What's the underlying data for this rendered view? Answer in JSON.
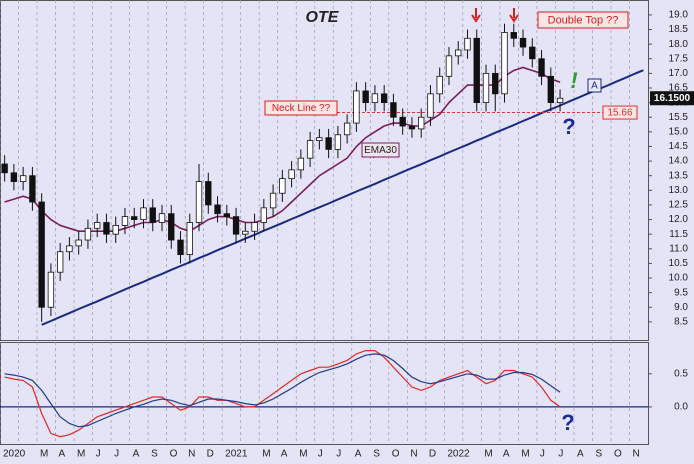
{
  "chart_data": [
    {
      "type": "candlestick",
      "title": "OTE",
      "title_color": "#1e9a1e",
      "categories": [
        "2020",
        null,
        null,
        null,
        "M",
        null,
        "A",
        null,
        "M",
        null,
        "J",
        null,
        "J",
        null,
        "A",
        null,
        "S",
        null,
        "O",
        null,
        "N",
        null,
        "D",
        null,
        "2021",
        null,
        null,
        null,
        "M",
        null,
        "A",
        null,
        "M",
        null,
        "J",
        null,
        "J",
        null,
        "A",
        null,
        "S",
        null,
        "O",
        null,
        "N",
        null,
        "D",
        null,
        "2022",
        null,
        null,
        null,
        "M",
        null,
        "A",
        null,
        "M",
        null,
        "J",
        null,
        "J",
        null,
        "A",
        null,
        "S",
        null,
        "O",
        null,
        "N",
        null
      ],
      "open": [
        13.9,
        13.6,
        13.3,
        13.5,
        12.6,
        9.0,
        10.2,
        10.9,
        11.1,
        11.3,
        11.7,
        11.9,
        11.5,
        11.8,
        12.1,
        12.0,
        12.4,
        11.9,
        12.2,
        11.3,
        10.8,
        11.9,
        13.3,
        12.5,
        12.2,
        12.1,
        11.5,
        11.6,
        11.9,
        12.4,
        12.9,
        13.4,
        13.7,
        14.1,
        14.7,
        14.8,
        14.4,
        14.9,
        15.3,
        16.4,
        16.0,
        16.3,
        16.0,
        15.5,
        15.2,
        15.1,
        15.5,
        16.3,
        16.9,
        17.6,
        17.8,
        18.2,
        16.0,
        17.0,
        16.3,
        18.4,
        18.2,
        17.9,
        17.5,
        16.9,
        16.0,
        null,
        null,
        null,
        null,
        null,
        null,
        null,
        null,
        null
      ],
      "high": [
        14.2,
        13.9,
        13.8,
        13.8,
        12.9,
        10.5,
        11.2,
        11.4,
        11.6,
        12.0,
        12.2,
        12.2,
        12.1,
        12.4,
        12.4,
        12.7,
        12.7,
        12.5,
        12.5,
        11.6,
        12.2,
        13.9,
        13.6,
        12.8,
        12.5,
        12.4,
        11.9,
        12.2,
        12.7,
        13.2,
        13.7,
        14.0,
        14.4,
        15.0,
        15.1,
        15.1,
        15.2,
        15.6,
        16.7,
        16.7,
        16.6,
        16.6,
        16.3,
        15.8,
        15.5,
        15.8,
        16.6,
        17.2,
        17.9,
        18.1,
        18.5,
        18.5,
        17.3,
        17.3,
        18.7,
        18.7,
        18.5,
        18.2,
        17.8,
        17.2,
        16.45,
        null,
        null,
        null,
        null,
        null,
        null,
        null,
        null,
        null
      ],
      "low": [
        13.3,
        13.0,
        13.0,
        12.3,
        8.5,
        8.7,
        9.9,
        10.6,
        10.8,
        11.0,
        11.4,
        11.2,
        11.2,
        11.5,
        11.7,
        11.7,
        11.6,
        11.6,
        11.0,
        10.5,
        10.5,
        11.6,
        12.2,
        11.9,
        11.8,
        11.2,
        11.2,
        11.3,
        11.6,
        12.1,
        12.6,
        13.1,
        13.4,
        13.8,
        14.4,
        14.1,
        14.1,
        14.6,
        15.0,
        15.7,
        15.7,
        15.7,
        15.2,
        14.9,
        14.8,
        14.8,
        15.2,
        16.0,
        16.6,
        17.3,
        17.5,
        15.7,
        15.7,
        15.7,
        16.0,
        17.9,
        17.6,
        17.2,
        16.6,
        15.7,
        15.7,
        null,
        null,
        null,
        null,
        null,
        null,
        null,
        null,
        null
      ],
      "close": [
        13.6,
        13.3,
        13.5,
        12.6,
        9.0,
        10.2,
        10.9,
        11.1,
        11.3,
        11.7,
        11.9,
        11.5,
        11.8,
        12.1,
        12.0,
        12.4,
        11.9,
        12.2,
        11.3,
        10.8,
        11.9,
        13.3,
        12.5,
        12.2,
        12.1,
        11.5,
        11.6,
        11.9,
        12.4,
        12.9,
        13.4,
        13.7,
        14.1,
        14.7,
        14.8,
        14.4,
        14.9,
        15.3,
        16.4,
        16.0,
        16.3,
        16.0,
        15.5,
        15.2,
        15.1,
        15.5,
        16.3,
        16.9,
        17.6,
        17.8,
        18.2,
        16.0,
        17.0,
        16.3,
        18.4,
        18.2,
        17.9,
        17.5,
        16.9,
        16.0,
        16.15,
        null,
        null,
        null,
        null,
        null,
        null,
        null,
        null,
        null
      ],
      "ema": {
        "name": "EMA30",
        "color": "#7a1d5c",
        "values": [
          12.6,
          12.7,
          12.8,
          12.7,
          12.3,
          12.0,
          11.8,
          11.7,
          11.6,
          11.6,
          11.6,
          11.6,
          11.6,
          11.7,
          11.8,
          11.9,
          11.9,
          12.0,
          11.9,
          11.7,
          11.6,
          11.8,
          12.0,
          12.1,
          12.1,
          12.0,
          11.9,
          11.9,
          12.0,
          12.1,
          12.3,
          12.6,
          12.9,
          13.2,
          13.5,
          13.7,
          13.9,
          14.1,
          14.5,
          14.8,
          15.0,
          15.2,
          15.3,
          15.3,
          15.2,
          15.2,
          15.4,
          15.6,
          16.0,
          16.3,
          16.6,
          16.6,
          16.6,
          16.6,
          16.9,
          17.1,
          17.2,
          17.1,
          17.0,
          16.8,
          16.7,
          null,
          null,
          null,
          null,
          null,
          null,
          null,
          null,
          null
        ]
      },
      "trendline": {
        "color": "#1a2a80",
        "values": [
          null,
          null,
          null,
          null,
          8.4,
          8.53,
          8.67,
          8.8,
          8.94,
          9.07,
          9.2,
          9.34,
          9.47,
          9.61,
          9.74,
          9.87,
          10.01,
          10.14,
          10.28,
          10.41,
          10.54,
          10.68,
          10.81,
          10.95,
          11.08,
          11.21,
          11.35,
          11.48,
          11.62,
          11.75,
          11.88,
          12.02,
          12.15,
          12.29,
          12.42,
          12.55,
          12.69,
          12.82,
          12.96,
          13.09,
          13.22,
          13.36,
          13.49,
          13.63,
          13.76,
          13.89,
          14.03,
          14.16,
          14.3,
          14.43,
          14.56,
          14.7,
          14.83,
          14.97,
          15.1,
          15.23,
          15.37,
          15.5,
          15.64,
          15.77,
          15.9,
          16.04,
          16.17,
          16.31,
          16.44,
          16.57,
          16.71,
          16.84,
          16.98,
          17.11
        ]
      },
      "price_line": 15.66,
      "price_line_color": "#e03030",
      "last_price": {
        "value": 16.15,
        "label": "16.1500"
      },
      "annotations": [
        "Neck Line ??",
        "Double Top ??",
        "!",
        "?",
        "A"
      ],
      "ylim": [
        7.88,
        19.51
      ],
      "yticks": [
        8.5,
        {
          "value": 9,
          "label": "9.0"
        },
        9.5,
        {
          "value": 10,
          "label": "10.0"
        },
        10.5,
        {
          "value": 11,
          "label": "11.0"
        },
        11.5,
        {
          "value": 12,
          "label": "12.0"
        },
        12.5,
        {
          "value": 13,
          "label": "13.0"
        },
        13.5,
        {
          "value": 14,
          "label": "14.0"
        },
        14.5,
        {
          "value": 15,
          "label": "15.0"
        },
        15.5,
        {
          "value": 16,
          "label": "16.0"
        },
        16.5,
        {
          "value": 17,
          "label": "17.0"
        },
        17.5,
        {
          "value": 18,
          "label": "18.0"
        },
        18.5,
        {
          "value": 19,
          "label": "19.0"
        }
      ],
      "grid": true
    },
    {
      "type": "line",
      "series": [
        {
          "color": "#e02828",
          "values": [
            0.45,
            0.42,
            0.4,
            0.3,
            -0.1,
            -0.4,
            -0.45,
            -0.42,
            -0.35,
            -0.25,
            -0.15,
            -0.1,
            -0.05,
            0.0,
            0.05,
            0.1,
            0.15,
            0.15,
            0.05,
            -0.05,
            0.0,
            0.15,
            0.15,
            0.1,
            0.1,
            0.05,
            0.0,
            0.0,
            0.1,
            0.2,
            0.3,
            0.4,
            0.5,
            0.55,
            0.6,
            0.6,
            0.65,
            0.7,
            0.8,
            0.85,
            0.85,
            0.75,
            0.6,
            0.45,
            0.3,
            0.25,
            0.3,
            0.4,
            0.45,
            0.5,
            0.55,
            0.45,
            0.35,
            0.4,
            0.55,
            0.55,
            0.5,
            0.45,
            0.3,
            0.1,
            0.0,
            null,
            null,
            null,
            null,
            null,
            null,
            null,
            null,
            null
          ]
        },
        {
          "color": "#1f3c88",
          "values": [
            0.5,
            0.48,
            0.45,
            0.4,
            0.25,
            0.05,
            -0.15,
            -0.25,
            -0.3,
            -0.28,
            -0.22,
            -0.16,
            -0.1,
            -0.05,
            0.0,
            0.04,
            0.09,
            0.12,
            0.1,
            0.05,
            0.02,
            0.07,
            0.12,
            0.12,
            0.1,
            0.08,
            0.05,
            0.03,
            0.06,
            0.12,
            0.2,
            0.28,
            0.37,
            0.45,
            0.52,
            0.56,
            0.6,
            0.65,
            0.72,
            0.78,
            0.8,
            0.78,
            0.7,
            0.58,
            0.45,
            0.38,
            0.35,
            0.38,
            0.42,
            0.46,
            0.5,
            0.48,
            0.42,
            0.42,
            0.48,
            0.52,
            0.52,
            0.49,
            0.42,
            0.32,
            0.22,
            null,
            null,
            null,
            null,
            null,
            null,
            null,
            null,
            null
          ]
        }
      ],
      "baseline": 0,
      "annotations": [
        "?"
      ],
      "ylim": [
        -0.56,
        0.98
      ],
      "yticks": [
        {
          "value": 0,
          "label": "0.0"
        },
        0.5
      ],
      "grid": true
    }
  ]
}
